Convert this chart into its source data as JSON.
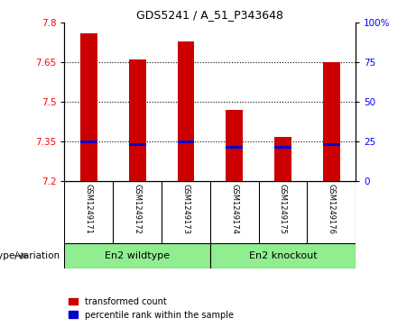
{
  "title": "GDS5241 / A_51_P343648",
  "samples": [
    "GSM1249171",
    "GSM1249172",
    "GSM1249173",
    "GSM1249174",
    "GSM1249175",
    "GSM1249176"
  ],
  "red_values": [
    7.76,
    7.66,
    7.73,
    7.47,
    7.37,
    7.65
  ],
  "blue_values": [
    7.35,
    7.34,
    7.35,
    7.33,
    7.33,
    7.34
  ],
  "y_min": 7.2,
  "y_max": 7.8,
  "y_ticks": [
    7.2,
    7.35,
    7.5,
    7.65,
    7.8
  ],
  "y_right_ticks": [
    0,
    25,
    50,
    75,
    100
  ],
  "y_right_tick_positions": [
    7.2,
    7.35,
    7.5,
    7.65,
    7.8
  ],
  "grid_lines": [
    7.35,
    7.5,
    7.65
  ],
  "group_labels": [
    "En2 wildtype",
    "En2 knockout"
  ],
  "group_colors": [
    "#90EE90",
    "#90EE90"
  ],
  "bar_color": "#CC0000",
  "blue_color": "#0000CC",
  "label_row_bg": "#C8C8C8",
  "group_row_bg": "#90EE90",
  "legend_red": "transformed count",
  "legend_blue": "percentile rank within the sample",
  "genotype_label": "genotype/variation",
  "bar_width": 0.35
}
